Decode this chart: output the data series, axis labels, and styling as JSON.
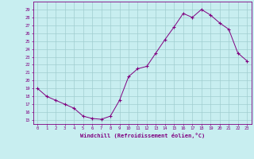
{
  "x": [
    0,
    1,
    2,
    3,
    4,
    5,
    6,
    7,
    8,
    9,
    10,
    11,
    12,
    13,
    14,
    15,
    16,
    17,
    18,
    19,
    20,
    21,
    22,
    23
  ],
  "y": [
    19,
    18,
    17.5,
    17,
    16.5,
    15.5,
    15.2,
    15.1,
    15.5,
    17.5,
    20.5,
    21.5,
    21.8,
    23.5,
    25.2,
    26.8,
    28.5,
    28.0,
    29.0,
    28.3,
    27.3,
    26.5,
    23.5,
    22.5
  ],
  "line_color": "#800080",
  "marker_color": "#800080",
  "bg_color": "#c8eef0",
  "grid_color": "#a0cdd0",
  "axis_color": "#800080",
  "tick_color": "#800080",
  "xlabel": "Windchill (Refroidissement éolien,°C)",
  "ylabel_ticks": [
    15,
    16,
    17,
    18,
    19,
    20,
    21,
    22,
    23,
    24,
    25,
    26,
    27,
    28,
    29
  ],
  "ylim": [
    14.5,
    30.0
  ],
  "xlim": [
    -0.5,
    23.5
  ],
  "figwidth": 3.2,
  "figheight": 2.0,
  "dpi": 100
}
